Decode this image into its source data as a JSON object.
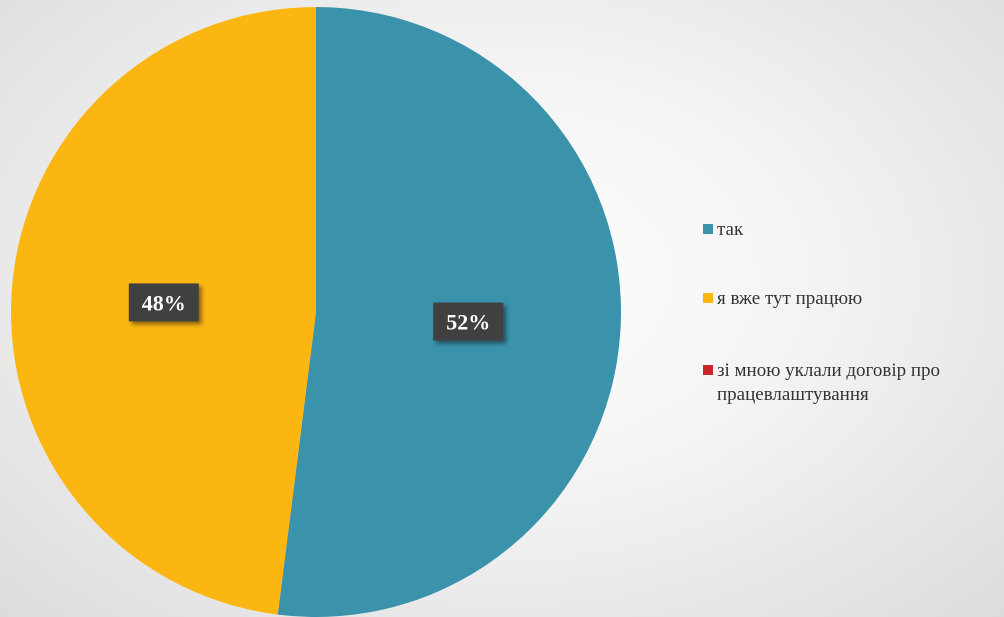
{
  "chart_data": {
    "type": "pie",
    "categories": [
      "так",
      "я вже тут працюю",
      "зі мною уклали договір про працевлаштування"
    ],
    "values": [
      52,
      48,
      0
    ],
    "data_labels": [
      "52%",
      "48%",
      ""
    ],
    "colors": [
      "#3a92ab",
      "#fcb611",
      "#c8282d"
    ],
    "legend_position": "right",
    "legend": [
      {
        "label": "так",
        "color": "#3a92ab"
      },
      {
        "label": "я вже тут працюю",
        "color": "#fcb611"
      },
      {
        "label": "зі мною уклали договір про працевлаштування",
        "color": "#c8282d"
      }
    ]
  }
}
